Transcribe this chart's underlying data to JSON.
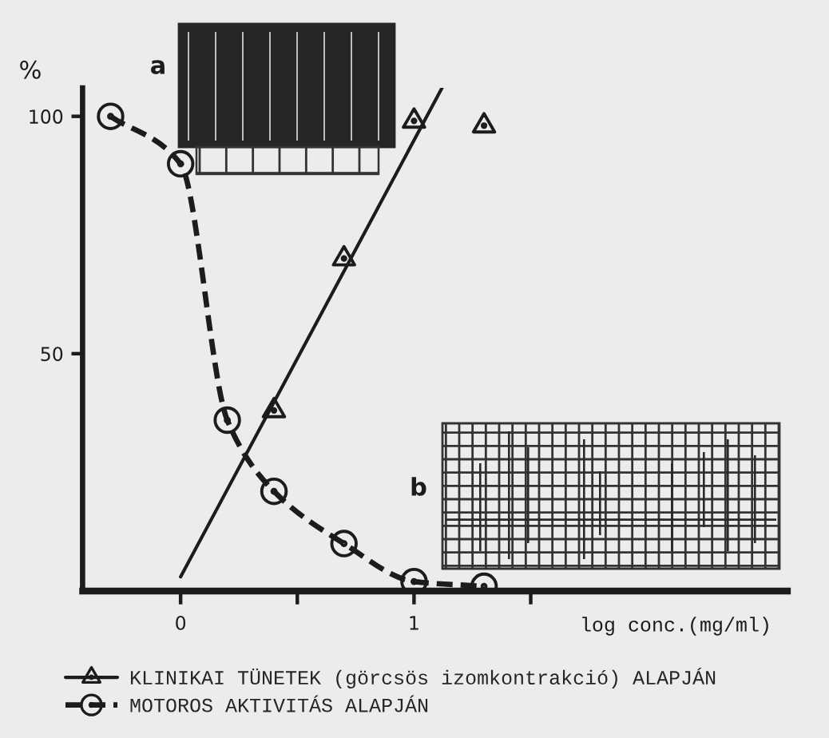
{
  "chart_data": {
    "type": "line",
    "ylabel": "%",
    "xlabel": "log conc.(mg/ml)",
    "annotations": [
      "a",
      "b"
    ],
    "series": [
      {
        "name": "KLINIKAI TÜNETEK (görcsös izomkontrakció) ALAPJÁN",
        "type": "scatter",
        "color": "#1c1c1c",
        "x": [
          0.4,
          0.7,
          1.0,
          1.3
        ],
        "values": [
          38,
          70,
          99,
          98
        ],
        "marker": "triangle",
        "line_style": "solid"
      },
      {
        "color": "#1c1c1c",
        "x": [
          0,
          1.12
        ],
        "values": [
          3,
          106
        ],
        "line_style": "solid"
      },
      {
        "name": "MOTOROS AKTIVITÁS ALAPJÁN",
        "color": "#1c1c1c",
        "x": [
          -0.3,
          0,
          0.2,
          0.4,
          0.7,
          1.0,
          1.3
        ],
        "values": [
          100,
          90,
          36,
          21,
          10,
          2,
          1
        ],
        "marker": "circle",
        "line_style": "dashed"
      }
    ],
    "xlim": [
      -0.42,
      2.6
    ],
    "ylim": [
      0,
      106
    ],
    "xticks": [
      0,
      {
        "value": 0.5,
        "label": null
      },
      1,
      {
        "value": 1.5,
        "label": null
      }
    ],
    "yticks": [
      50,
      100
    ],
    "legend": "bottom"
  }
}
